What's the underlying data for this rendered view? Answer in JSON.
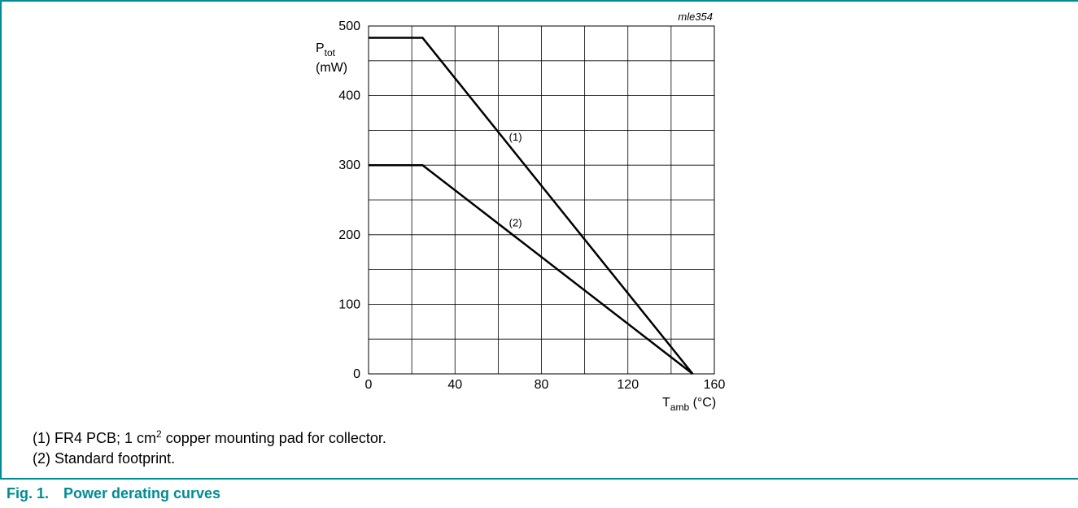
{
  "chart_data": {
    "type": "line",
    "figure_id": "mle354",
    "ylabel": "P",
    "ylabel_sub": "tot",
    "yunit": "(mW)",
    "xlabel": "T",
    "xlabel_sub": "amb",
    "xunit": "(°C)",
    "xlim": [
      0,
      160
    ],
    "ylim": [
      0,
      500
    ],
    "x_ticks": [
      "0",
      "40",
      "80",
      "120",
      "160"
    ],
    "y_ticks": [
      "0",
      "100",
      "200",
      "300",
      "400",
      "500"
    ],
    "x_tick_values": [
      0,
      40,
      80,
      120,
      160
    ],
    "y_tick_values": [
      0,
      100,
      200,
      300,
      400,
      500
    ],
    "grid": true,
    "series": [
      {
        "name": "(1)",
        "x": [
          0,
          25,
          150
        ],
        "y": [
          483,
          483,
          0
        ]
      },
      {
        "name": "(2)",
        "x": [
          0,
          25,
          150
        ],
        "y": [
          300,
          300,
          0
        ]
      }
    ],
    "annotations": [
      {
        "text": "(1)",
        "x": 68,
        "y": 335
      },
      {
        "text": "(2)",
        "x": 68,
        "y": 212
      }
    ]
  },
  "notes": [
    {
      "before": "(1) FR4 PCB; 1 cm",
      "sup": "2",
      "after": " copper mounting pad for collector."
    },
    {
      "text": "(2) Standard footprint."
    }
  ],
  "caption": {
    "number": "Fig. 1.",
    "title": "Power derating curves"
  },
  "colors": {
    "accent": "#008c95",
    "line": "#000000"
  }
}
